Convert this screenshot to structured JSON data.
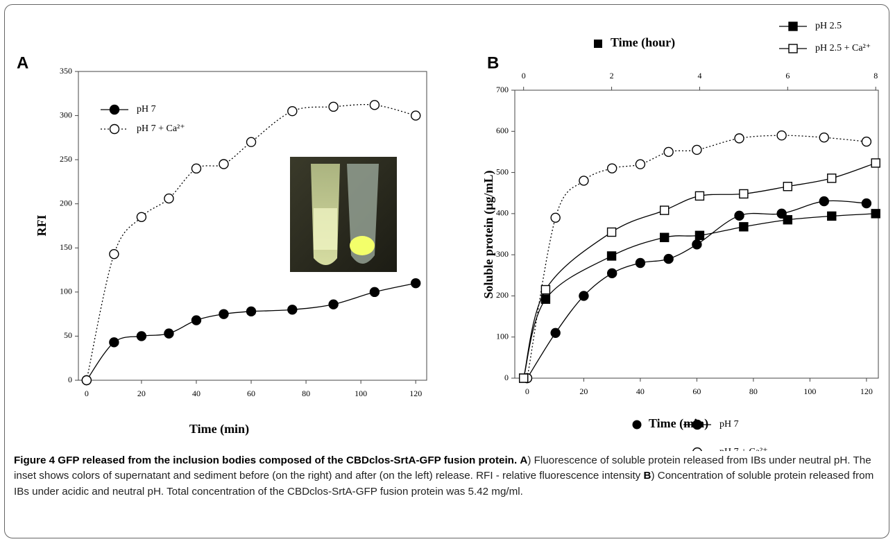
{
  "chart_data": [
    {
      "type": "line",
      "panel": "A",
      "xlabel": "Time (min)",
      "ylabel": "RFI",
      "xlim": [
        -3,
        124
      ],
      "xticks": [
        0,
        20,
        40,
        60,
        80,
        100,
        120
      ],
      "ylim": [
        0,
        350
      ],
      "yticks": [
        0,
        50,
        100,
        150,
        200,
        250,
        300,
        350
      ],
      "legend": "upper left",
      "x": [
        0,
        10,
        20,
        30,
        40,
        50,
        60,
        75,
        90,
        105,
        120
      ],
      "series": [
        {
          "name": "pH 7",
          "color": "#000000",
          "marker": "filled-circle",
          "line": "solid",
          "values": [
            0,
            43,
            50,
            53,
            68,
            75,
            78,
            80,
            86,
            100,
            110
          ]
        },
        {
          "name": "pH 7 + Ca²⁺",
          "color": "#000000",
          "marker": "open-circle",
          "line": "dotted",
          "values": [
            0,
            143,
            185,
            206,
            240,
            245,
            270,
            305,
            310,
            312,
            300
          ]
        }
      ]
    },
    {
      "type": "line",
      "panel": "B",
      "xlabel": "Time (min)",
      "x2label": "Time (hour)",
      "ylabel": "Soluble protein (µg/mL)",
      "xlim": [
        -4.4,
        124.2
      ],
      "xticks": [
        0,
        20,
        40,
        60,
        80,
        100,
        120
      ],
      "x2lim": [
        -0.2,
        8.06
      ],
      "x2ticks": [
        0,
        2,
        4,
        6,
        8
      ],
      "ylim": [
        0,
        700
      ],
      "yticks": [
        0,
        100,
        200,
        300,
        400,
        500,
        600,
        700
      ],
      "series": [
        {
          "name": "pH 7",
          "color": "#000000",
          "marker": "filled-circle",
          "line": "solid",
          "x": [
            0,
            10,
            20,
            30,
            40,
            50,
            60,
            75,
            90,
            105,
            120
          ],
          "values": [
            0,
            110,
            200,
            255,
            280,
            290,
            325,
            395,
            400,
            430,
            425
          ]
        },
        {
          "name": "pH 7 + Ca²⁺",
          "color": "#000000",
          "marker": "open-circle",
          "line": "dotted",
          "x": [
            0,
            10,
            20,
            30,
            40,
            50,
            60,
            75,
            90,
            105,
            120
          ],
          "values": [
            0,
            390,
            480,
            510,
            520,
            550,
            555,
            583,
            590,
            585,
            575
          ]
        },
        {
          "name": "pH 2.5",
          "color": "#000000",
          "marker": "filled-square",
          "line": "solid",
          "xaxis": "x2",
          "x": [
            0,
            0.5,
            2,
            3.2,
            4,
            5,
            6,
            7,
            8
          ],
          "values": [
            0,
            192,
            297,
            342,
            347,
            368,
            385,
            394,
            400
          ]
        },
        {
          "name": "pH 2.5 + Ca²⁺",
          "color": "#000000",
          "marker": "open-square",
          "line": "solid",
          "xaxis": "x2",
          "x": [
            0,
            0.5,
            2,
            3.2,
            4,
            5,
            6,
            7,
            8
          ],
          "values": [
            0,
            215,
            355,
            408,
            443,
            448,
            466,
            486,
            523
          ]
        }
      ]
    }
  ],
  "caption": {
    "title": "Figure 4 GFP released from the inclusion bodies composed of the CBDclos-SrtA-GFP fusion protein.",
    "parts": [
      {
        "label": "A",
        "text": ") Fluorescence of soluble protein released from IBs under neutral pH. The inset shows colors of supernatant and sediment before (on the right) and after (on the left) release. RFI - relative fluorescence intensity "
      },
      {
        "label": "B",
        "text": ") Concentration of soluble protein released from IBs under acidic and neutral pH. Total concentration of the CBDclos-SrtA-GFP fusion protein was 5.42 mg/ml."
      }
    ]
  }
}
